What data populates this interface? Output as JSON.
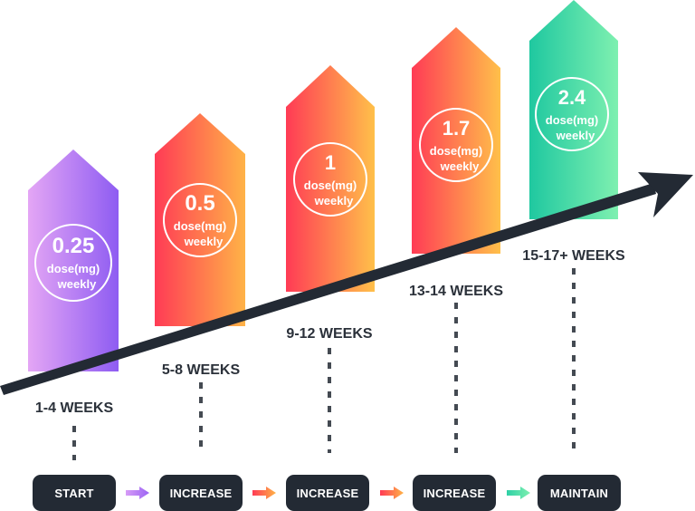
{
  "stages": [
    {
      "dose": "0.25",
      "unit_line1": "dose(mg)",
      "unit_line2": "weekly",
      "weeks": "1-4 WEEKS",
      "step": "START",
      "color_light": "#e4a6f5",
      "color_dark": "#8e5cf2"
    },
    {
      "dose": "0.5",
      "unit_line1": "dose(mg)",
      "unit_line2": "weekly",
      "weeks": "5-8 WEEKS",
      "step": "INCREASE",
      "color_light": "#ff3b55",
      "color_dark": "#ffb347"
    },
    {
      "dose": "1",
      "unit_line1": "dose(mg)",
      "unit_line2": "weekly",
      "weeks": "9-12 WEEKS",
      "step": "INCREASE",
      "color_light": "#ff3b55",
      "color_dark": "#ffc04a"
    },
    {
      "dose": "1.7",
      "unit_line1": "dose(mg)",
      "unit_line2": "weekly",
      "weeks": "13-14 WEEKS",
      "step": "INCREASE",
      "color_light": "#ff3b55",
      "color_dark": "#ffc04a"
    },
    {
      "dose": "2.4",
      "unit_line1": "dose(mg)",
      "unit_line2": "weekly",
      "weeks": "15-17+ WEEKS",
      "step": "MAINTAIN",
      "color_light": "#1fc8a0",
      "color_dark": "#7ef0b0"
    }
  ],
  "connector_arrows": [
    {
      "from": "#d79cf6",
      "to": "#9b63f4"
    },
    {
      "from": "#ff3b55",
      "to": "#ffb347"
    },
    {
      "from": "#ff3b55",
      "to": "#ffb347"
    },
    {
      "from": "#2fd0a6",
      "to": "#7ef0b0"
    }
  ],
  "colors": {
    "trend_arrow": "#232a34",
    "dots": "#444a52",
    "button_bg": "#232a34"
  }
}
